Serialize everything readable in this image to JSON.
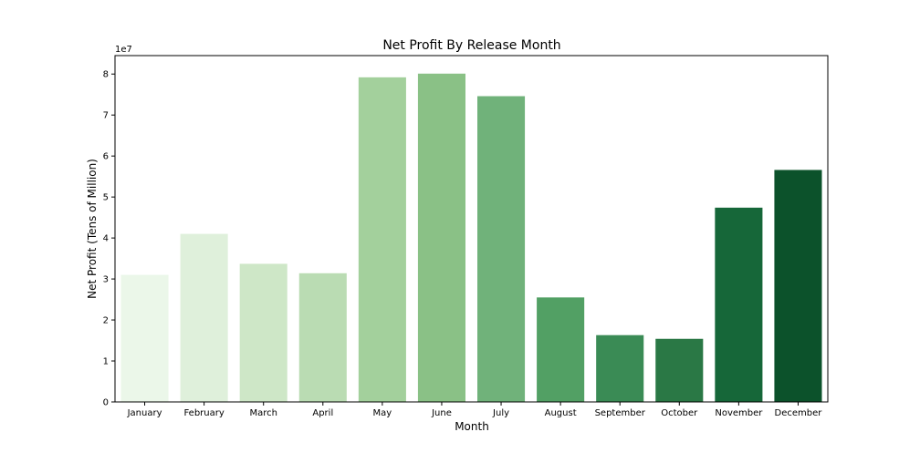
{
  "chart_data": {
    "type": "bar",
    "title": "Net Profit By Release Month",
    "xlabel": "Month",
    "ylabel": "Net Profit (Tens of Million)",
    "offset_label": "1e7",
    "categories": [
      "January",
      "February",
      "March",
      "April",
      "May",
      "June",
      "July",
      "August",
      "September",
      "October",
      "November",
      "December"
    ],
    "values": [
      31000000,
      41000000,
      33700000,
      31400000,
      79200000,
      80100000,
      74600000,
      25500000,
      16300000,
      15400000,
      47400000,
      56600000
    ],
    "ylim": [
      0,
      84500000
    ],
    "yticks": [
      0,
      10000000,
      20000000,
      30000000,
      40000000,
      50000000,
      60000000,
      70000000,
      80000000
    ],
    "ytick_labels": [
      "0",
      "1",
      "2",
      "3",
      "4",
      "5",
      "6",
      "7",
      "8"
    ],
    "colors": [
      "#ebf7e9",
      "#dff0db",
      "#cee7c7",
      "#badcb3",
      "#a3d09c",
      "#8ac186",
      "#70b27a",
      "#52a064",
      "#3a8b55",
      "#2a7845",
      "#166739",
      "#0c522b"
    ],
    "grid": false,
    "legend": "none"
  }
}
